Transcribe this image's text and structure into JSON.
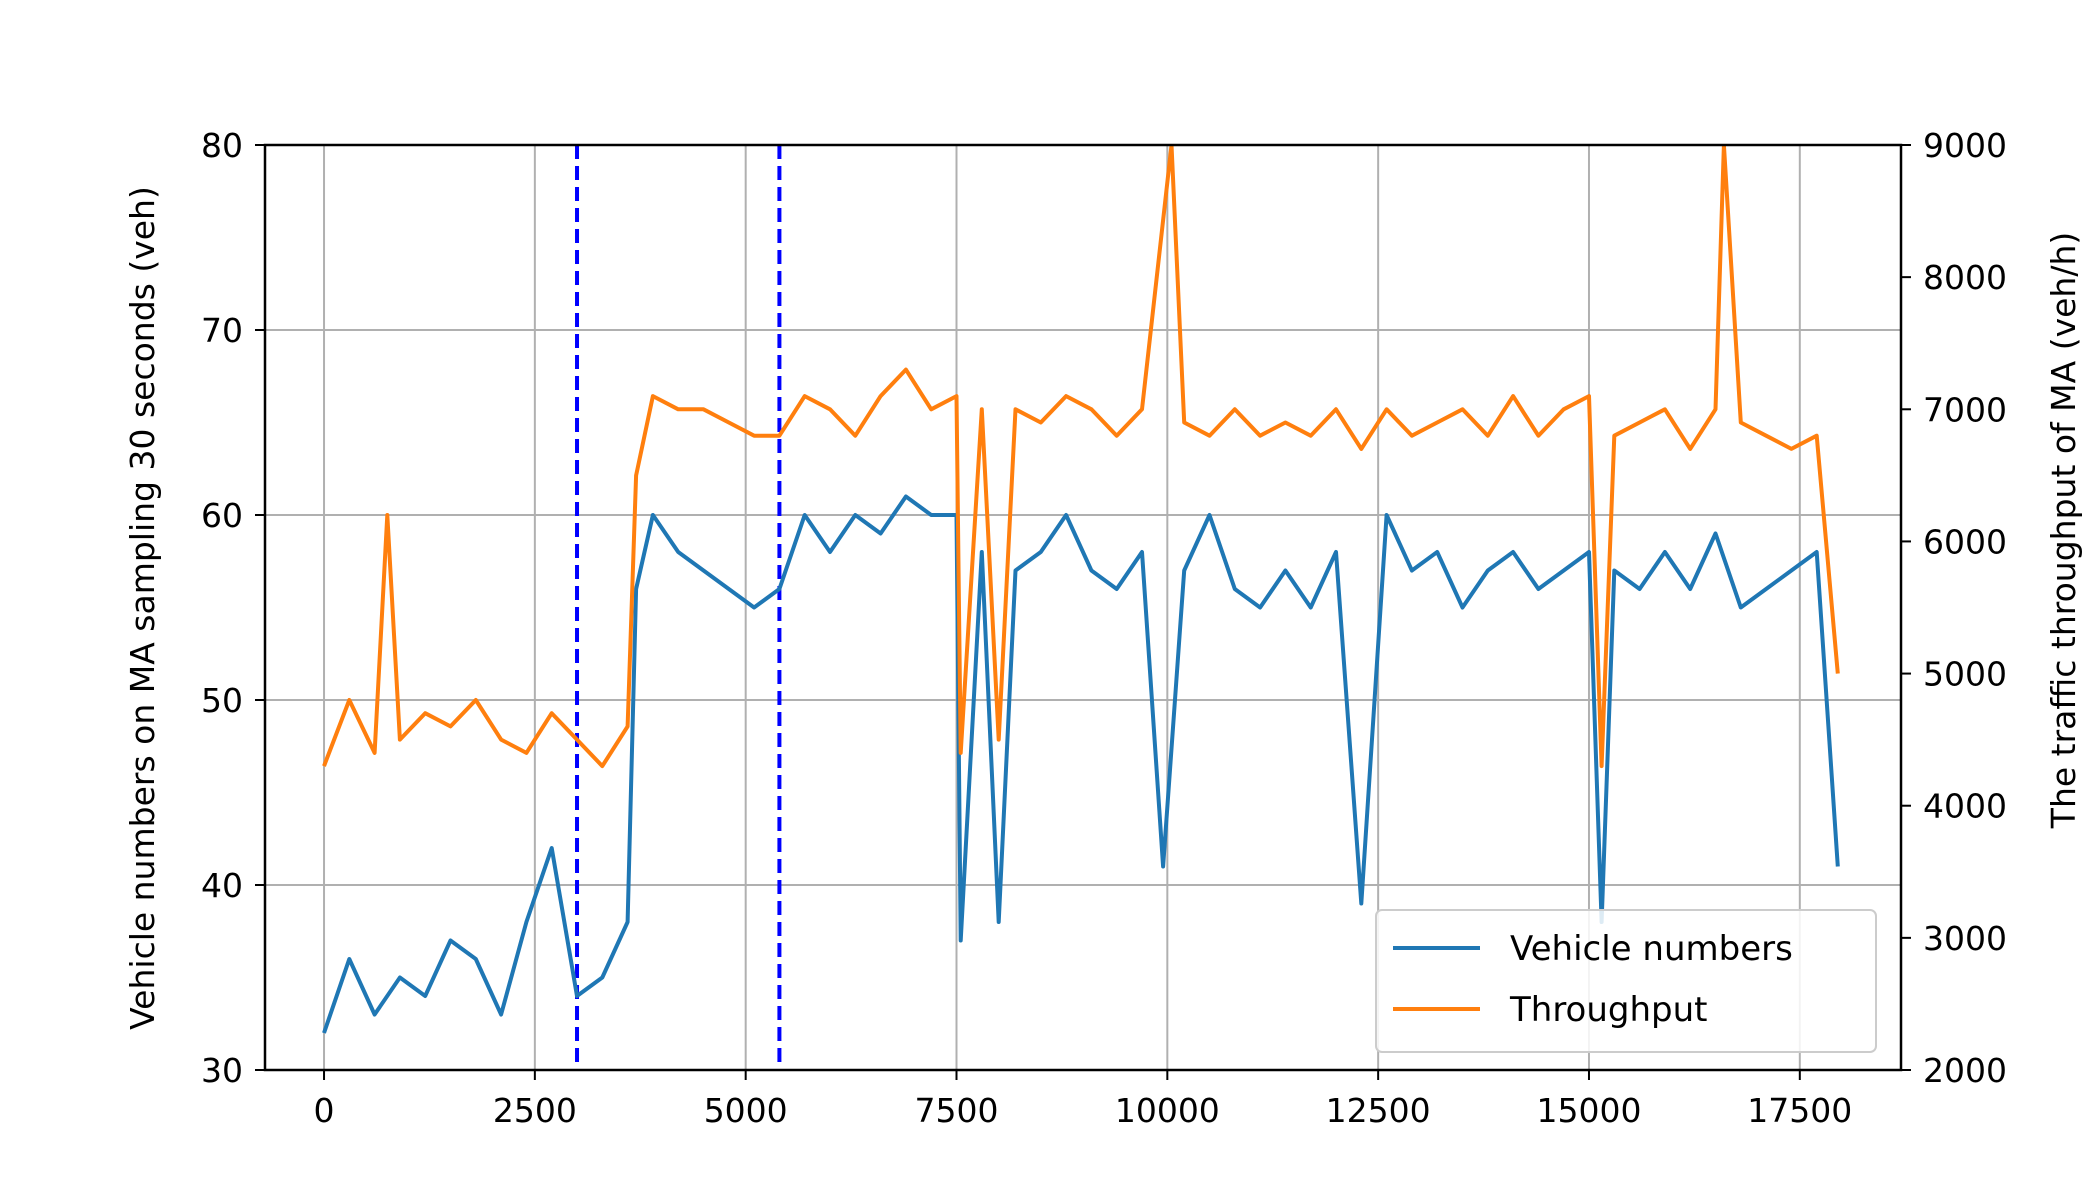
{
  "chart_data": {
    "type": "line",
    "title": "",
    "xlabel": "",
    "ylabel": "Vehicle numbers on MA sampling 30 seconds (veh)",
    "ylabel_right": "The traffic throughput of MA (veh/h)",
    "xlim": [
      -700,
      18700
    ],
    "ylim": [
      30,
      80
    ],
    "ylim_right": [
      2000,
      9000
    ],
    "x_ticks": [
      0,
      2500,
      5000,
      7500,
      10000,
      12500,
      15000,
      17500
    ],
    "x_tick_labels": [
      "0",
      "2500",
      "5000",
      "7500",
      "10000",
      "12500",
      "15000",
      "17500"
    ],
    "y_ticks": [
      30,
      40,
      50,
      60,
      70,
      80
    ],
    "y_tick_labels": [
      "30",
      "40",
      "50",
      "60",
      "70",
      "80"
    ],
    "y_right_ticks": [
      2000,
      3000,
      4000,
      5000,
      6000,
      7000,
      8000,
      9000
    ],
    "y_right_tick_labels": [
      "2000",
      "3000",
      "4000",
      "5000",
      "6000",
      "7000",
      "8000",
      "9000"
    ],
    "grid": true,
    "legend_position": "bottom-right",
    "vertical_lines": [
      {
        "x": 3000,
        "style": "dashed",
        "color": "#0000ff"
      },
      {
        "x": 5400,
        "style": "dashed",
        "color": "#0000ff"
      }
    ],
    "series": [
      {
        "name": "Vehicle numbers",
        "axis": "left",
        "color": "#1f77b4",
        "x": [
          0,
          300,
          600,
          900,
          1200,
          1500,
          1800,
          2100,
          2400,
          2700,
          3000,
          3300,
          3600,
          3700,
          3900,
          4200,
          4500,
          4800,
          5100,
          5400,
          5700,
          6000,
          6300,
          6600,
          6900,
          7200,
          7500,
          7550,
          7800,
          8000,
          8200,
          8500,
          8800,
          9100,
          9400,
          9700,
          9950,
          10200,
          10500,
          10800,
          11100,
          11400,
          11700,
          12000,
          12300,
          12600,
          12900,
          13200,
          13500,
          13800,
          14100,
          14400,
          14700,
          15000,
          15150,
          15300,
          15600,
          15900,
          16200,
          16500,
          16800,
          17100,
          17400,
          17700,
          17950
        ],
        "y": [
          32,
          36,
          33,
          35,
          34,
          37,
          36,
          33,
          38,
          42,
          34,
          35,
          38,
          56,
          60,
          58,
          57,
          56,
          55,
          56,
          60,
          58,
          60,
          59,
          61,
          60,
          60,
          37,
          58,
          38,
          57,
          58,
          60,
          57,
          56,
          58,
          41,
          57,
          60,
          56,
          55,
          57,
          55,
          58,
          39,
          60,
          57,
          58,
          55,
          57,
          58,
          56,
          57,
          58,
          38,
          57,
          56,
          58,
          56,
          59,
          55,
          56,
          57,
          58,
          41
        ]
      },
      {
        "name": "Throughput",
        "axis": "right",
        "color": "#ff7f0e",
        "x": [
          0,
          300,
          600,
          750,
          900,
          1200,
          1500,
          1800,
          2100,
          2400,
          2700,
          3000,
          3300,
          3600,
          3700,
          3900,
          4200,
          4500,
          4800,
          5100,
          5400,
          5700,
          6000,
          6300,
          6600,
          6900,
          7200,
          7500,
          7550,
          7800,
          8000,
          8200,
          8500,
          8800,
          9100,
          9400,
          9700,
          10050,
          10200,
          10500,
          10800,
          11100,
          11400,
          11700,
          12000,
          12300,
          12600,
          12900,
          13200,
          13500,
          13800,
          14100,
          14400,
          14700,
          15000,
          15150,
          15300,
          15600,
          15900,
          16200,
          16500,
          16600,
          16800,
          17100,
          17400,
          17700,
          17950
        ],
        "y": [
          4300,
          4800,
          4400,
          6200,
          4500,
          4700,
          4600,
          4800,
          4500,
          4400,
          4700,
          4500,
          4300,
          4600,
          6500,
          7100,
          7000,
          7000,
          6900,
          6800,
          6800,
          7100,
          7000,
          6800,
          7100,
          7300,
          7000,
          7100,
          4400,
          7000,
          4500,
          7000,
          6900,
          7100,
          7000,
          6800,
          7000,
          9000,
          6900,
          6800,
          7000,
          6800,
          6900,
          6800,
          7000,
          6700,
          7000,
          6800,
          6900,
          7000,
          6800,
          7100,
          6800,
          7000,
          7100,
          4300,
          6800,
          6900,
          7000,
          6700,
          7000,
          9000,
          6900,
          6800,
          6700,
          6800,
          5000
        ]
      }
    ]
  }
}
